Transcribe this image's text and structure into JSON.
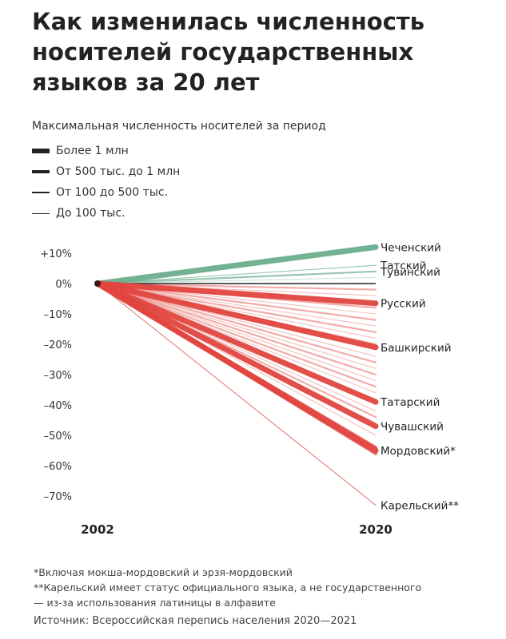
{
  "title": "Как изменилась численность носителей государственных языков за 20 лет",
  "subtitle": "Максимальная численность носителей за период",
  "legend": [
    {
      "label": "Более 1 млн",
      "level": 4
    },
    {
      "label": "От 500 тыс. до 1 млн",
      "level": 3
    },
    {
      "label": "От 100 до 500 тыс.",
      "level": 2
    },
    {
      "label": "До 100 тыс.",
      "level": 1
    }
  ],
  "colors": {
    "growth": "#6aae8d",
    "decline": "#e0463e",
    "zero_line": "#222222"
  },
  "chart_data": {
    "type": "line",
    "title": "",
    "x": [
      "2002",
      "2020"
    ],
    "ylim": [
      -76,
      12
    ],
    "yticks": [
      {
        "value": 10,
        "label": "+10%"
      },
      {
        "value": 0,
        "label": "0%"
      },
      {
        "value": -10,
        "label": "–10%"
      },
      {
        "value": -20,
        "label": "–20%"
      },
      {
        "value": -30,
        "label": "–30%"
      },
      {
        "value": -40,
        "label": "–40%"
      },
      {
        "value": -50,
        "label": "–50%"
      },
      {
        "value": -60,
        "label": "–60%"
      },
      {
        "value": -70,
        "label": "–70%"
      }
    ],
    "zero_line": 0,
    "series": [
      {
        "name": "Чеченский",
        "change": 12,
        "level": 4,
        "labeled": true
      },
      {
        "name": "Татский",
        "change": 6,
        "level": 1,
        "labeled": true
      },
      {
        "name": "Тувинский",
        "change": 4,
        "level": 2,
        "labeled": true
      },
      {
        "name": "Русский",
        "change": -6.5,
        "level": 4,
        "labeled": true
      },
      {
        "name": "Башкирский",
        "change": -21,
        "level": 4,
        "labeled": true
      },
      {
        "name": "Татарский",
        "change": -39,
        "level": 4,
        "labeled": true
      },
      {
        "name": "Чувашский",
        "change": -47,
        "level": 4,
        "labeled": true
      },
      {
        "name": "Мордовский*",
        "change": -55,
        "level": 4,
        "labeled": true
      },
      {
        "name": "Карельский**",
        "change": -73,
        "level": 1,
        "labeled": true
      }
    ],
    "other_series_changes": [
      {
        "change": 2,
        "level": 1
      },
      {
        "change": -54,
        "level": 3
      },
      {
        "change": -56,
        "level": 3
      },
      {
        "change": -2,
        "level": 2
      },
      {
        "change": -4,
        "level": 1
      },
      {
        "change": -8,
        "level": 2
      },
      {
        "change": -10,
        "level": 1
      },
      {
        "change": -12,
        "level": 2
      },
      {
        "change": -14,
        "level": 1
      },
      {
        "change": -16,
        "level": 2
      },
      {
        "change": -18,
        "level": 1
      },
      {
        "change": -20,
        "level": 2
      },
      {
        "change": -24,
        "level": 1
      },
      {
        "change": -26,
        "level": 2
      },
      {
        "change": -28,
        "level": 1
      },
      {
        "change": -30,
        "level": 2
      },
      {
        "change": -32,
        "level": 1
      },
      {
        "change": -34,
        "level": 2
      },
      {
        "change": -36,
        "level": 1
      },
      {
        "change": -42,
        "level": 1
      },
      {
        "change": -44,
        "level": 2
      },
      {
        "change": -46,
        "level": 1
      },
      {
        "change": -50,
        "level": 1
      }
    ]
  },
  "footnotes": [
    "*Включая мокша-мордовский и эрзя-мордовский",
    "**Карельский имеет статус официального языка, а не государственного",
    "— из-за использования латиницы в алфавите"
  ],
  "source": "Источник: Всероссийская перепись населения 2020—2021"
}
